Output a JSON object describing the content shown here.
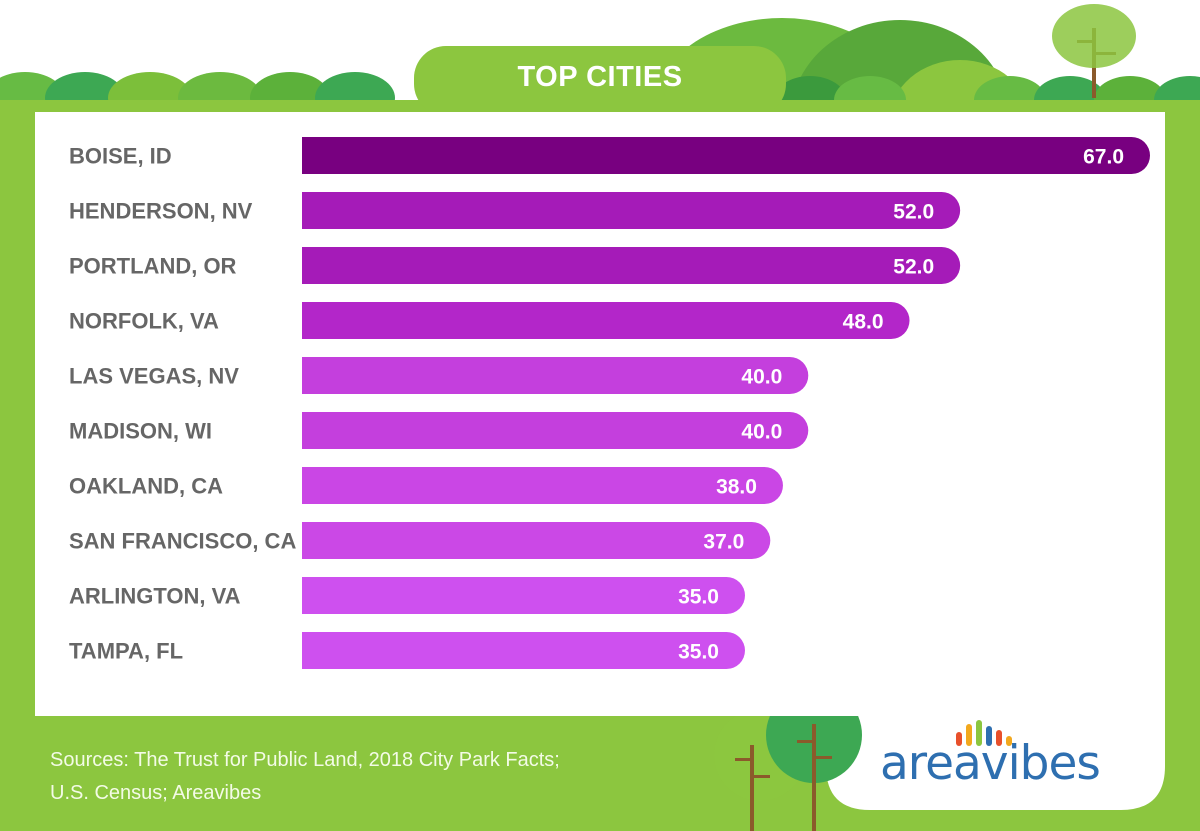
{
  "header": {
    "title": "TOP CITIES"
  },
  "footer": {
    "sources_line1": "Sources: The Trust for Public Land, 2018 City Park Facts;",
    "sources_line2": "U.S. Census; Areavibes"
  },
  "brand": {
    "name": "areavibes",
    "logo_bar_colors": [
      "#e8502b",
      "#f2a81d",
      "#8cc63f",
      "#2e6fb0",
      "#e8502b",
      "#f2a81d"
    ]
  },
  "colors": {
    "frame_green": "#8cc63f",
    "bar_darkest": "#780080",
    "bar_lightest": "#d057f2",
    "category_label": "#666666",
    "value_label": "#ffffff"
  },
  "chart_data": {
    "type": "bar",
    "orientation": "horizontal",
    "title": "TOP CITIES",
    "categories": [
      "BOISE, ID",
      "HENDERSON, NV",
      "PORTLAND, OR",
      "NORFOLK, VA",
      "LAS VEGAS, NV",
      "MADISON, WI",
      "OAKLAND, CA",
      "SAN FRANCISCO, CA",
      "ARLINGTON, VA",
      "TAMPA, FL"
    ],
    "values": [
      67.0,
      52.0,
      52.0,
      48.0,
      40.0,
      40.0,
      38.0,
      37.0,
      35.0,
      35.0
    ],
    "value_labels": [
      "67.0",
      "52.0",
      "52.0",
      "48.0",
      "40.0",
      "40.0",
      "38.0",
      "37.0",
      "35.0",
      "35.0"
    ],
    "bar_colors": [
      "#780080",
      "#a51bb8",
      "#a51bb8",
      "#b326c9",
      "#c43fdd",
      "#c43fdd",
      "#ca46e5",
      "#cb48e6",
      "#ce50ef",
      "#ce50ef"
    ],
    "xlim": [
      0,
      67
    ],
    "grid": false,
    "legend": "none"
  }
}
